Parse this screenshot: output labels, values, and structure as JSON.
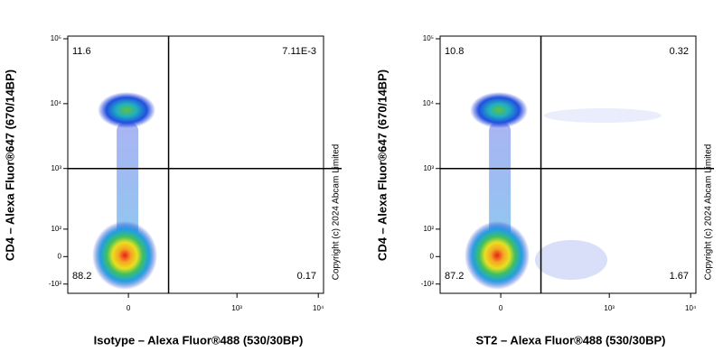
{
  "chart_data": [
    {
      "type": "flow-density",
      "x_label": "Isotype – Alexa Fluor®488 (530/30BP)",
      "y_label": "CD4 – Alexa Fluor®647 (670/14BP)",
      "copyright": "Copyright (c) 2024 Abcam Limited",
      "scale": "biexponential",
      "xlim": [
        -250,
        11600
      ],
      "ylim": [
        -150,
        110000
      ],
      "xticks": [
        0,
        {
          "value": 1000,
          "label": "10³"
        },
        {
          "value": 10000,
          "label": "10⁴"
        }
      ],
      "yticks": [
        {
          "value": 100000,
          "label": "10⁵"
        },
        {
          "value": 10000,
          "label": "10⁴"
        },
        {
          "value": 1000,
          "label": "10³"
        },
        {
          "value": 100,
          "label": "10²"
        },
        0,
        {
          "value": -100,
          "label": "-10²"
        }
      ],
      "gate_x": 130,
      "gate_y": 1000,
      "values": [
        11.6,
        0.00711,
        88.2,
        0.17
      ],
      "value_labels": [
        "11.6",
        "7.11E-3",
        "88.2",
        "0.17"
      ]
    },
    {
      "type": "flow-density",
      "x_label": "ST2 – Alexa Fluor®488 (530/30BP)",
      "y_label": "CD4 – Alexa Fluor®647 (670/14BP)",
      "copyright": "Copyright (c) 2024 Abcam Limited",
      "scale": "biexponential",
      "xlim": [
        -250,
        11600
      ],
      "ylim": [
        -150,
        110000
      ],
      "xticks": [
        0,
        {
          "value": 1000,
          "label": "10³"
        },
        {
          "value": 10000,
          "label": "10⁴"
        }
      ],
      "yticks": [
        {
          "value": 100000,
          "label": "10⁵"
        },
        {
          "value": 10000,
          "label": "10⁴"
        },
        {
          "value": 1000,
          "label": "10³"
        },
        {
          "value": 100,
          "label": "10²"
        },
        0,
        {
          "value": -100,
          "label": "-10²"
        }
      ],
      "gate_x": 130,
      "gate_y": 1000,
      "values": [
        10.8,
        0.32,
        87.2,
        1.67
      ]
    }
  ]
}
